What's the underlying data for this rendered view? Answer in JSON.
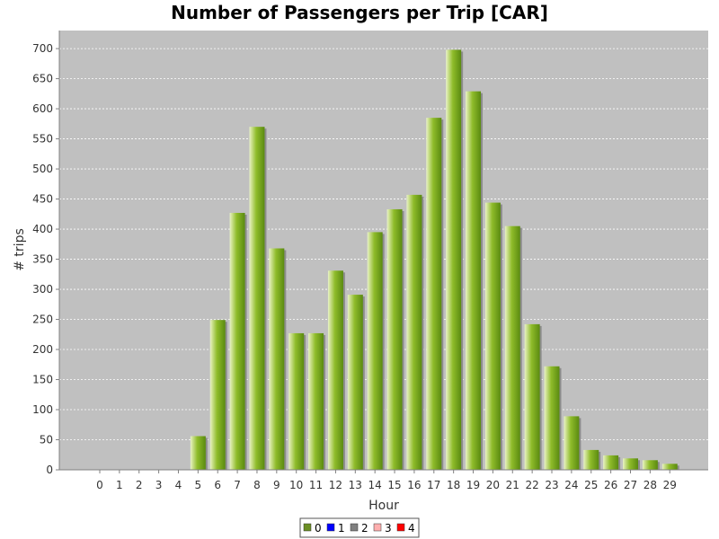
{
  "chart_data": {
    "type": "bar",
    "title": "Number of Passengers per Trip [CAR]",
    "xlabel": "Hour",
    "ylabel": "# trips",
    "ylim": [
      0,
      730
    ],
    "y_ticks": [
      0,
      50,
      100,
      150,
      200,
      250,
      300,
      350,
      400,
      450,
      500,
      550,
      600,
      650,
      700
    ],
    "grid": true,
    "legend_position": "bottom",
    "categories": [
      "0",
      "1",
      "2",
      "3",
      "4",
      "5",
      "6",
      "7",
      "8",
      "9",
      "10",
      "11",
      "12",
      "13",
      "14",
      "15",
      "16",
      "17",
      "18",
      "19",
      "20",
      "21",
      "22",
      "23",
      "24",
      "25",
      "26",
      "27",
      "28",
      "29"
    ],
    "series": [
      {
        "name": "0",
        "color": "#6b8e23",
        "values": [
          0,
          0,
          0,
          0,
          0,
          56,
          249,
          427,
          570,
          368,
          227,
          227,
          331,
          291,
          395,
          433,
          457,
          585,
          698,
          629,
          444,
          405,
          242,
          172,
          89,
          33,
          24,
          19,
          16,
          10
        ]
      },
      {
        "name": "1",
        "color": "#0000ff",
        "values": [
          0,
          0,
          0,
          0,
          0,
          0,
          0,
          0,
          0,
          0,
          0,
          0,
          0,
          0,
          0,
          0,
          0,
          0,
          0,
          0,
          0,
          0,
          0,
          0,
          0,
          0,
          0,
          0,
          0,
          0
        ]
      },
      {
        "name": "2",
        "color": "#808080",
        "values": [
          0,
          0,
          0,
          0,
          0,
          0,
          0,
          0,
          0,
          0,
          0,
          0,
          0,
          0,
          0,
          0,
          0,
          0,
          0,
          0,
          0,
          0,
          0,
          0,
          0,
          0,
          0,
          0,
          0,
          0
        ]
      },
      {
        "name": "3",
        "color": "#ffafaf",
        "values": [
          0,
          0,
          0,
          0,
          0,
          0,
          0,
          0,
          0,
          0,
          0,
          0,
          0,
          0,
          0,
          0,
          0,
          0,
          0,
          0,
          0,
          0,
          0,
          0,
          0,
          0,
          0,
          0,
          0,
          0
        ]
      },
      {
        "name": "4",
        "color": "#ff0000",
        "values": [
          0,
          0,
          0,
          0,
          0,
          0,
          0,
          0,
          0,
          0,
          0,
          0,
          0,
          0,
          0,
          0,
          0,
          0,
          0,
          0,
          0,
          0,
          0,
          0,
          0,
          0,
          0,
          0,
          0,
          0
        ]
      }
    ]
  }
}
